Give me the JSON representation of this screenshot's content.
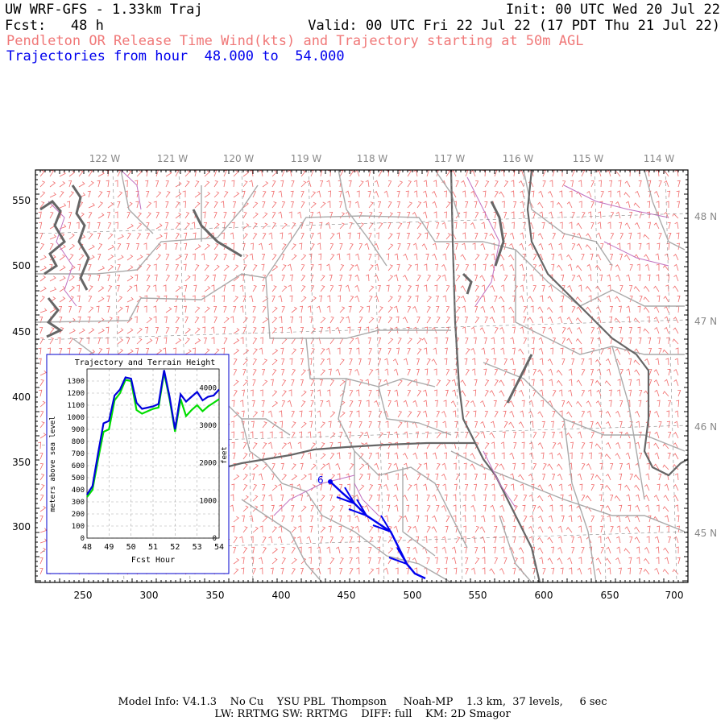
{
  "header": {
    "title": "UW WRF-GFS - 1.33km Traj",
    "init": "Init: 00 UTC Wed 20 Jul 22",
    "fcst": "Fcst:   48 h",
    "valid": "Valid: 00 UTC Fri 22 Jul 22 (17 PDT Thu 21 Jul 22)",
    "subtitle": "Pendleton OR Release Time Wind(kts) and Trajectory starting at 50m AGL",
    "traj_range": "Trajectories from hour  48.000 to  54.000",
    "subtitle_color": "#f07878",
    "traj_color": "#0000ee"
  },
  "map": {
    "x_ticks": [
      "250",
      "300",
      "350",
      "400",
      "450",
      "500",
      "550",
      "600",
      "650",
      "700"
    ],
    "y_ticks": [
      "550",
      "500",
      "450",
      "400",
      "350",
      "300"
    ],
    "lon_labels": [
      "122 W",
      "121 W",
      "120 W",
      "119 W",
      "118 W",
      "117 W",
      "116 W",
      "115 W",
      "114 W"
    ],
    "lat_labels": [
      "48 N",
      "47 N",
      "46 N",
      "45 N"
    ],
    "trajectory_label": "6",
    "wind_color": "#f06a6a",
    "county_color": "#aaaaaa",
    "state_color": "#666666",
    "water_color": "#c070c0"
  },
  "inset": {
    "title": "Trajectory and Terrain Height",
    "left_axis_label": "meters above sea level",
    "right_axis_label": "feet",
    "x_axis_label": "Fcst Hour",
    "trajectory_color": "#0000dd",
    "terrain_color": "#00dd00"
  },
  "chart_data": {
    "type": "line",
    "x": [
      48,
      48.25,
      48.5,
      48.75,
      49,
      49.25,
      49.5,
      49.75,
      50,
      50.25,
      50.5,
      50.75,
      51,
      51.25,
      51.5,
      51.75,
      52,
      52.25,
      52.5,
      52.75,
      53,
      53.25,
      53.5,
      53.75,
      54
    ],
    "xlim": [
      48,
      54
    ],
    "ylim": [
      0,
      1400
    ],
    "y2lim": [
      0,
      4500
    ],
    "x_ticks": [
      "48",
      "49",
      "50",
      "51",
      "52",
      "53",
      "54"
    ],
    "y_ticks": [
      "0",
      "100",
      "200",
      "300",
      "400",
      "500",
      "600",
      "700",
      "800",
      "900",
      "1000",
      "1100",
      "1200",
      "1300"
    ],
    "y2_ticks": [
      "0",
      "1000",
      "2000",
      "3000",
      "4000"
    ],
    "xlabel": "Fcst Hour",
    "ylabel": "meters above sea level",
    "y2label": "feet",
    "title": "Trajectory and Terrain Height",
    "series": [
      {
        "values": [
          360,
          430,
          700,
          950,
          970,
          1180,
          1230,
          1330,
          1320,
          1120,
          1070,
          1080,
          1090,
          1110,
          1390,
          1170,
          900,
          1190,
          1130,
          1170,
          1210,
          1140,
          1170,
          1180,
          1230
        ]
      },
      {
        "values": [
          340,
          400,
          650,
          880,
          900,
          1140,
          1200,
          1310,
          1300,
          1060,
          1030,
          1050,
          1070,
          1080,
          1370,
          1150,
          880,
          1150,
          1010,
          1060,
          1100,
          1050,
          1090,
          1120,
          1150
        ]
      }
    ]
  },
  "footer": {
    "line1": "Model Info: V4.1.3    No Cu    YSU PBL  Thompson     Noah-MP    1.3 km,  37 levels,     6 sec",
    "line2": "LW: RRTMG SW: RRTMG    DIFF: full    KM: 2D Smagor"
  }
}
